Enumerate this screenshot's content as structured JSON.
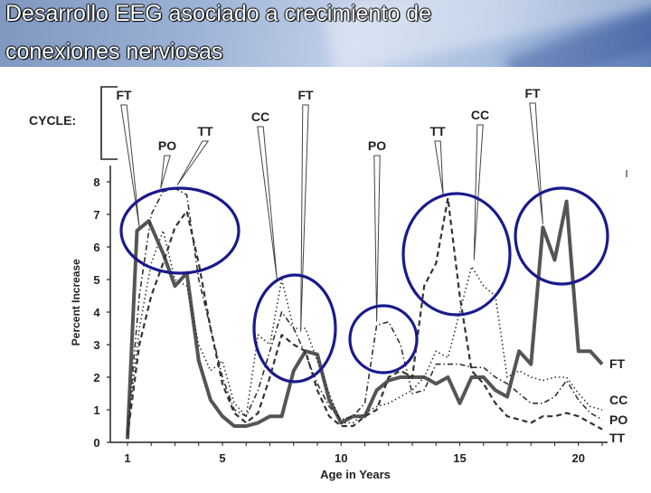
{
  "slide": {
    "title_line1": "Desarrollo EEG asociado a crecimiento de",
    "title_line2": "conexiones nerviosas"
  },
  "chart_data": {
    "type": "line",
    "xlabel": "Age in Years",
    "ylabel": "Percent Increase",
    "xlim": [
      1,
      21
    ],
    "ylim": [
      0,
      8.5
    ],
    "x_ticks": [
      1,
      5,
      10,
      15,
      20
    ],
    "y_ticks": [
      0,
      1,
      2,
      3,
      4,
      5,
      6,
      7,
      8
    ],
    "cycle_label": "CYCLE:",
    "cycle_markers": [
      {
        "label": "FT",
        "x": 1.5,
        "y": 6.6
      },
      {
        "label": "PO",
        "x": 2.4,
        "y": 7.8
      },
      {
        "label": "TT",
        "x": 3.1,
        "y": 7.9
      },
      {
        "label": "CC",
        "x": 7.3,
        "y": 5.0
      },
      {
        "label": "FT",
        "x": 8.3,
        "y": 3.4
      },
      {
        "label": "PO",
        "x": 11.5,
        "y": 3.7
      },
      {
        "label": "TT",
        "x": 14.3,
        "y": 7.6
      },
      {
        "label": "CC",
        "x": 15.6,
        "y": 5.6
      },
      {
        "label": "FT",
        "x": 18.5,
        "y": 6.7
      }
    ],
    "series": [
      {
        "name": "FT",
        "style": "solid-thick",
        "x": [
          1,
          1.4,
          1.9,
          2.5,
          3.0,
          3.5,
          4.0,
          4.5,
          5.0,
          5.5,
          6.0,
          6.5,
          7.0,
          7.5,
          8.0,
          8.5,
          9.0,
          9.5,
          10.0,
          10.5,
          11.0,
          11.5,
          12.0,
          12.5,
          13.0,
          13.5,
          14.0,
          14.5,
          15.0,
          15.5,
          16.0,
          16.5,
          17.0,
          17.5,
          18.0,
          18.5,
          19.0,
          19.5,
          20.0,
          20.5,
          21.0
        ],
        "y": [
          0.1,
          6.5,
          6.8,
          5.8,
          4.8,
          5.2,
          2.5,
          1.3,
          0.8,
          0.5,
          0.5,
          0.6,
          0.8,
          0.8,
          2.2,
          2.8,
          2.7,
          1.3,
          0.6,
          0.8,
          0.8,
          1.6,
          1.9,
          2.0,
          2.0,
          2.0,
          1.8,
          2.0,
          1.2,
          2.0,
          2.0,
          1.6,
          1.4,
          2.8,
          2.4,
          6.6,
          5.6,
          7.4,
          2.8,
          2.8,
          2.4
        ]
      },
      {
        "name": "CC",
        "style": "dotted",
        "x": [
          1,
          1.5,
          2.0,
          2.5,
          3.0,
          3.5,
          4.0,
          4.5,
          5.0,
          5.5,
          6.0,
          6.5,
          7.0,
          7.5,
          8.0,
          8.5,
          9.0,
          9.5,
          10.0,
          10.5,
          11.0,
          11.5,
          12.0,
          12.5,
          13.0,
          13.5,
          14.0,
          14.5,
          15.0,
          15.5,
          16.0,
          16.5,
          17.0,
          17.5,
          18.0,
          18.5,
          19.0,
          19.5,
          20.0,
          20.5,
          21.0
        ],
        "y": [
          0.3,
          3.5,
          5.5,
          6.5,
          5.0,
          4.8,
          3.0,
          2.2,
          2.5,
          1.2,
          0.8,
          3.3,
          3.0,
          5.0,
          3.5,
          3.5,
          2.5,
          1.5,
          0.6,
          0.6,
          0.9,
          1.1,
          1.2,
          1.4,
          1.6,
          2.0,
          2.8,
          2.6,
          4.0,
          5.4,
          4.8,
          4.5,
          2.0,
          2.2,
          2.0,
          1.9,
          2.0,
          2.0,
          1.5,
          1.1,
          1.0
        ]
      },
      {
        "name": "PO",
        "style": "dash-dot",
        "x": [
          1,
          1.5,
          2.0,
          2.5,
          3.0,
          3.5,
          4.0,
          4.5,
          5.0,
          5.5,
          6.0,
          6.5,
          7.0,
          7.5,
          8.0,
          8.5,
          9.0,
          9.5,
          10.0,
          10.5,
          11.0,
          11.5,
          12.0,
          12.5,
          13.0,
          13.5,
          14.0,
          14.5,
          15.0,
          15.5,
          16.0,
          16.5,
          17.0,
          17.5,
          18.0,
          18.5,
          19.0,
          19.5,
          20.0,
          20.5,
          21.0
        ],
        "y": [
          0.3,
          4.5,
          7.0,
          7.7,
          7.8,
          7.6,
          5.0,
          3.5,
          2.0,
          1.0,
          0.8,
          1.6,
          2.8,
          4.0,
          3.5,
          2.7,
          1.8,
          1.1,
          0.7,
          0.8,
          1.2,
          3.6,
          3.7,
          3.0,
          1.5,
          1.6,
          2.4,
          2.4,
          2.4,
          2.3,
          2.3,
          2.0,
          1.8,
          1.5,
          1.2,
          1.2,
          1.4,
          1.9,
          1.3,
          0.9,
          0.7
        ]
      },
      {
        "name": "TT",
        "style": "dashed",
        "x": [
          1,
          1.5,
          2.0,
          2.5,
          3.0,
          3.5,
          4.0,
          4.5,
          5.0,
          5.5,
          6.0,
          6.5,
          7.0,
          7.5,
          8.0,
          8.5,
          9.0,
          9.5,
          10.0,
          10.5,
          11.0,
          11.5,
          12.0,
          12.5,
          13.0,
          13.5,
          14.0,
          14.5,
          15.0,
          15.5,
          16.0,
          16.5,
          17.0,
          17.5,
          18.0,
          18.5,
          19.0,
          19.5,
          20.0,
          20.5,
          21.0
        ],
        "y": [
          0.2,
          3.0,
          4.5,
          5.5,
          6.6,
          7.1,
          5.5,
          3.5,
          1.8,
          0.9,
          0.6,
          0.9,
          2.0,
          3.3,
          3.0,
          2.8,
          1.6,
          0.8,
          0.5,
          0.5,
          0.8,
          1.0,
          2.0,
          2.2,
          2.0,
          4.8,
          5.5,
          7.5,
          4.5,
          2.2,
          1.8,
          1.2,
          0.8,
          0.7,
          0.6,
          0.8,
          0.8,
          0.9,
          0.8,
          0.6,
          0.4
        ]
      }
    ],
    "annotations": "blue circles highlight peak regions",
    "highlight_color": "#1a1a8c"
  }
}
